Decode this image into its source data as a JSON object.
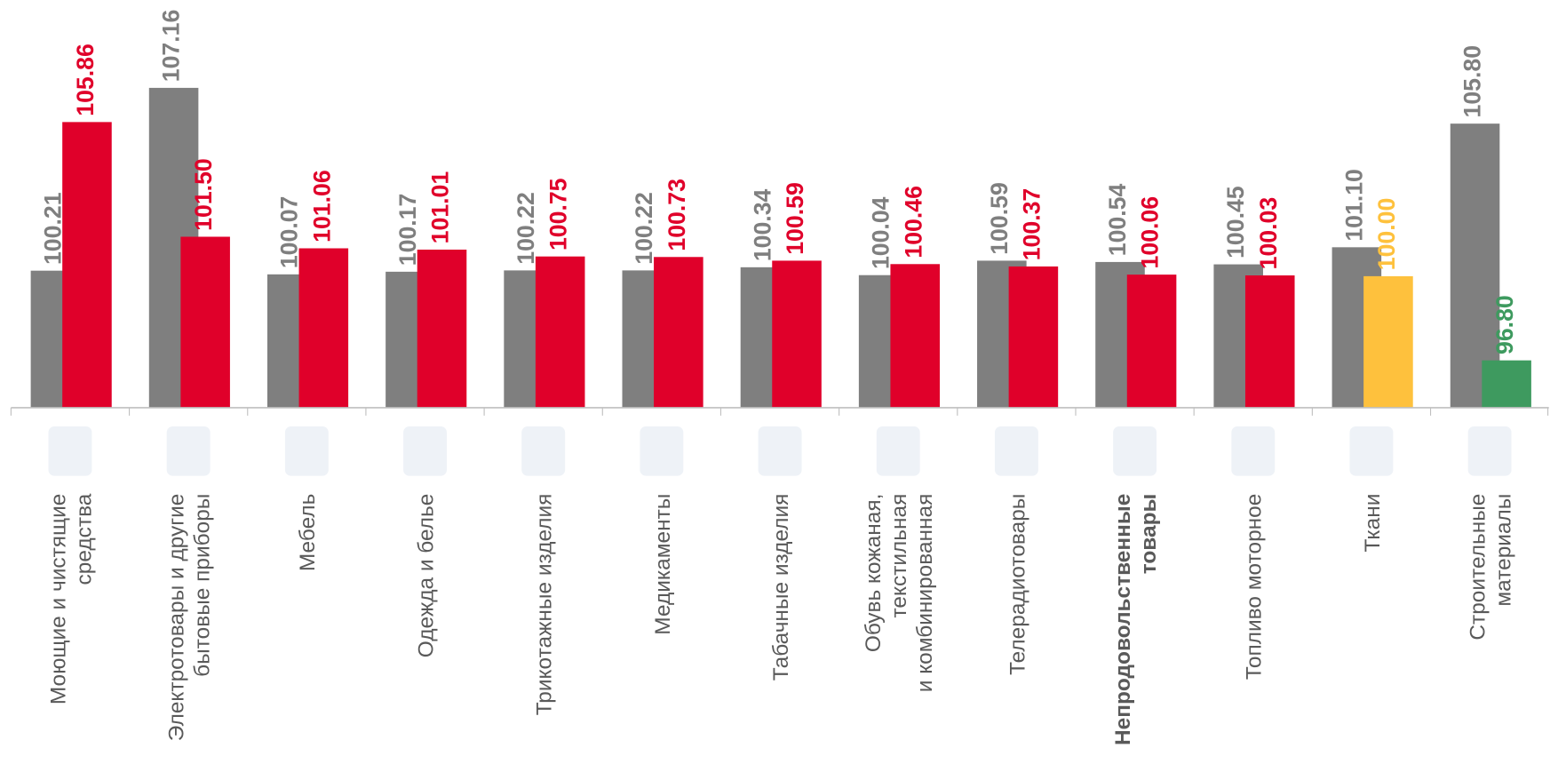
{
  "chart_data": {
    "type": "bar",
    "categories": [
      [
        "Моющие и чистящие",
        "средства"
      ],
      [
        "Электротовары и другие",
        "бытовые приборы"
      ],
      [
        "Мебель"
      ],
      [
        "Одежда и белье"
      ],
      [
        "Трикотажные изделия"
      ],
      [
        "Медикаменты"
      ],
      [
        "Табачные изделия"
      ],
      [
        "Обувь кожаная,",
        "текстильная",
        "и комбинированная"
      ],
      [
        "Телерадиотовары"
      ],
      [
        "Непродовольственные",
        "товары"
      ],
      [
        "Топливо моторное"
      ],
      [
        "Ткани"
      ],
      [
        "Строительные",
        "материалы"
      ]
    ],
    "series": [
      {
        "color": "#7f7f7f",
        "values": [
          100.21,
          107.16,
          100.07,
          100.17,
          100.22,
          100.22,
          100.34,
          100.04,
          100.59,
          100.54,
          100.45,
          101.1,
          105.8
        ],
        "value_labels": [
          "100.21",
          "107.16",
          "100.07",
          "100.17",
          "100.22",
          "100.22",
          "100.34",
          "100.04",
          "100.59",
          "100.54",
          "100.45",
          "101.10",
          "105.80"
        ]
      },
      {
        "colors": [
          "#e0002a",
          "#e0002a",
          "#e0002a",
          "#e0002a",
          "#e0002a",
          "#e0002a",
          "#e0002a",
          "#e0002a",
          "#e0002a",
          "#e0002a",
          "#e0002a",
          "#fec13d",
          "#3e9a5f"
        ],
        "values": [
          105.86,
          101.5,
          101.06,
          101.01,
          100.75,
          100.73,
          100.59,
          100.46,
          100.37,
          100.06,
          100.03,
          100.0,
          96.8
        ],
        "value_labels": [
          "105.86",
          "101.50",
          "101.06",
          "101.01",
          "100.75",
          "100.73",
          "100.59",
          "100.46",
          "100.37",
          "100.06",
          "100.03",
          "100.00",
          "96.80"
        ]
      }
    ],
    "ylim": [
      95,
      110.5
    ]
  }
}
